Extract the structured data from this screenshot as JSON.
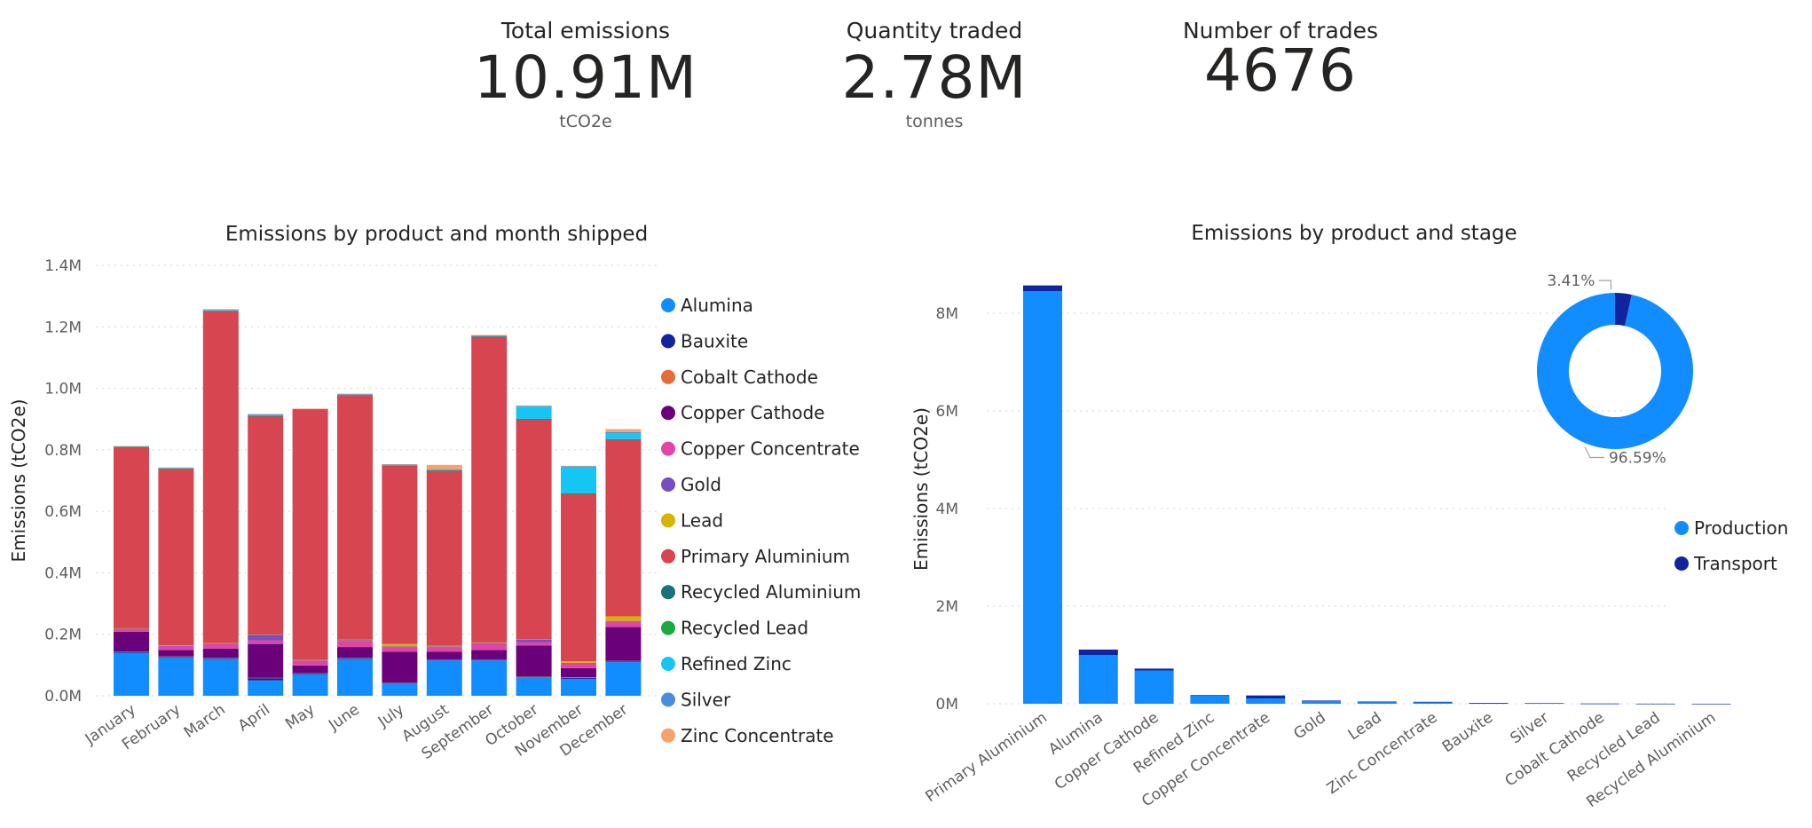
{
  "kpis": [
    {
      "title": "Total emissions",
      "value": "10.91M",
      "unit": "tCO2e"
    },
    {
      "title": "Quantity traded",
      "value": "2.78M",
      "unit": "tonnes"
    },
    {
      "title": "Number of trades",
      "value": "4676",
      "unit": ""
    }
  ],
  "chart_data": [
    {
      "type": "bar",
      "stacked": true,
      "title": "Emissions by product and month shipped",
      "xlabel": "",
      "ylabel": "Emissions (tCO2e)",
      "ylim": [
        0,
        1400000
      ],
      "yticks": [
        {
          "v": 0,
          "label": "0.0M"
        },
        {
          "v": 200000,
          "label": "0.2M"
        },
        {
          "v": 400000,
          "label": "0.4M"
        },
        {
          "v": 600000,
          "label": "0.6M"
        },
        {
          "v": 800000,
          "label": "0.8M"
        },
        {
          "v": 1000000,
          "label": "1.0M"
        },
        {
          "v": 1200000,
          "label": "1.2M"
        },
        {
          "v": 1400000,
          "label": "1.4M"
        }
      ],
      "grid": true,
      "legend": "right",
      "categories": [
        "January",
        "February",
        "March",
        "April",
        "May",
        "June",
        "July",
        "August",
        "September",
        "October",
        "November",
        "December"
      ],
      "series": [
        {
          "name": "Alumina",
          "color": "#118DFF",
          "values": [
            140000,
            125000,
            120000,
            50000,
            70000,
            120000,
            40000,
            115000,
            115000,
            60000,
            55000,
            110000
          ]
        },
        {
          "name": "Bauxite",
          "color": "#12239E",
          "values": [
            3000,
            3000,
            3000,
            8000,
            3000,
            3000,
            3000,
            3000,
            3000,
            3000,
            3000,
            3000
          ]
        },
        {
          "name": "Cobalt Cathode",
          "color": "#E66C37",
          "values": [
            500,
            500,
            500,
            500,
            500,
            500,
            500,
            500,
            500,
            500,
            2000,
            500
          ]
        },
        {
          "name": "Copper Cathode",
          "color": "#6B007B",
          "values": [
            65000,
            20000,
            30000,
            110000,
            25000,
            35000,
            100000,
            25000,
            30000,
            100000,
            30000,
            110000
          ]
        },
        {
          "name": "Copper Concentrate",
          "color": "#E044A7",
          "values": [
            8000,
            12000,
            15000,
            12000,
            15000,
            20000,
            15000,
            15000,
            20000,
            10000,
            15000,
            18000
          ]
        },
        {
          "name": "Gold",
          "color": "#744EC2",
          "values": [
            2000,
            2000,
            2000,
            18000,
            2000,
            3000,
            2000,
            2000,
            3000,
            10000,
            2000,
            2000
          ]
        },
        {
          "name": "Lead",
          "color": "#D9B300",
          "values": [
            1000,
            1000,
            1000,
            1000,
            1000,
            1000,
            8000,
            2000,
            2000,
            1000,
            5000,
            15000
          ]
        },
        {
          "name": "Primary Aluminium",
          "color": "#D64550",
          "values": [
            590000,
            575000,
            1080000,
            710000,
            815000,
            795000,
            580000,
            570000,
            995000,
            715000,
            545000,
            575000
          ]
        },
        {
          "name": "Recycled Aluminium",
          "color": "#197278",
          "values": [
            500,
            500,
            500,
            500,
            500,
            500,
            500,
            500,
            500,
            500,
            500,
            500
          ]
        },
        {
          "name": "Recycled Lead",
          "color": "#1AAB40",
          "values": [
            500,
            500,
            500,
            500,
            500,
            500,
            500,
            500,
            500,
            500,
            500,
            500
          ]
        },
        {
          "name": "Refined Zinc",
          "color": "#15C6F4",
          "values": [
            500,
            500,
            500,
            500,
            500,
            500,
            500,
            500,
            500,
            40000,
            85000,
            20000
          ]
        },
        {
          "name": "Silver",
          "color": "#4A8DDC",
          "values": [
            500,
            2000,
            2000,
            5000,
            500,
            3000,
            3000,
            2000,
            3000,
            3000,
            3000,
            3000
          ]
        },
        {
          "name": "Zinc Concentrate",
          "color": "#F4A36E",
          "values": [
            500,
            500,
            3000,
            500,
            500,
            500,
            500,
            15000,
            500,
            500,
            2000,
            10000
          ]
        }
      ]
    },
    {
      "type": "bar",
      "stacked": true,
      "title": "Emissions by product and stage",
      "xlabel": "",
      "ylabel": "Emissions (tCO2e)",
      "ylim": [
        0,
        8800000
      ],
      "yticks": [
        {
          "v": 0,
          "label": "0M"
        },
        {
          "v": 2000000,
          "label": "2M"
        },
        {
          "v": 4000000,
          "label": "4M"
        },
        {
          "v": 6000000,
          "label": "6M"
        },
        {
          "v": 8000000,
          "label": "8M"
        }
      ],
      "grid": true,
      "legend": "right",
      "categories": [
        "Primary Aluminium",
        "Alumina",
        "Copper Cathode",
        "Refined Zinc",
        "Copper Concentrate",
        "Gold",
        "Lead",
        "Zinc Concentrate",
        "Bauxite",
        "Silver",
        "Cobalt Cathode",
        "Recycled Lead",
        "Recycled Aluminium"
      ],
      "series": [
        {
          "name": "Production",
          "color": "#118DFF",
          "values": [
            8450000,
            1000000,
            680000,
            170000,
            110000,
            60000,
            40000,
            35000,
            10000,
            10000,
            3000,
            1000,
            500
          ]
        },
        {
          "name": "Transport",
          "color": "#12239E",
          "values": [
            120000,
            110000,
            40000,
            10000,
            60000,
            5000,
            5000,
            5000,
            8000,
            2000,
            1000,
            500,
            200
          ]
        }
      ]
    },
    {
      "type": "pie",
      "donut": true,
      "title": "",
      "slices": [
        {
          "name": "Production",
          "value": 96.59,
          "label": "96.59%",
          "color": "#118DFF"
        },
        {
          "name": "Transport",
          "value": 3.41,
          "label": "3.41%",
          "color": "#12239E"
        }
      ]
    }
  ]
}
